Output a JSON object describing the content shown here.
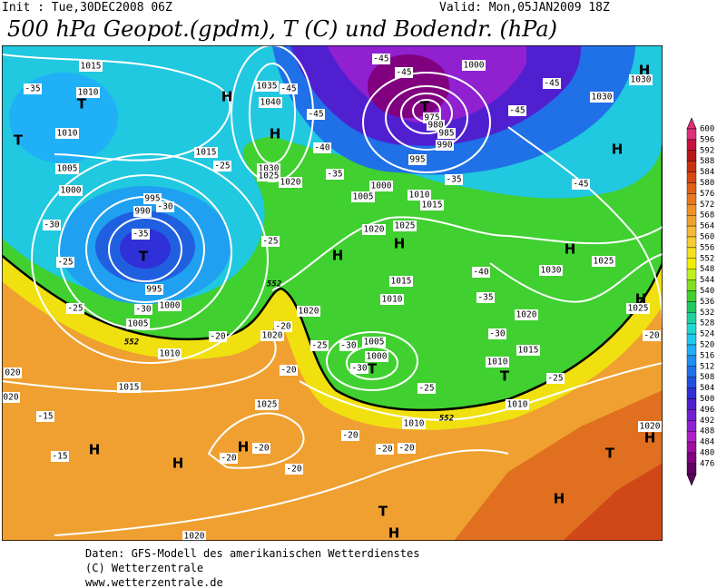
{
  "header": {
    "init": "Init : Tue,30DEC2008 06Z",
    "valid": "Valid: Mon,05JAN2009 18Z",
    "title": "500 hPa Geopot.(gpdm), T (C) und Bodendr. (hPa)"
  },
  "legend": [
    {
      "label": 600,
      "color": "#e0307a"
    },
    {
      "label": 596,
      "color": "#c8103e"
    },
    {
      "label": 592,
      "color": "#b81818"
    },
    {
      "label": 588,
      "color": "#c83010"
    },
    {
      "label": 584,
      "color": "#d84810"
    },
    {
      "label": 580,
      "color": "#e06018"
    },
    {
      "label": 576,
      "color": "#e87820"
    },
    {
      "label": 572,
      "color": "#f09028"
    },
    {
      "label": 568,
      "color": "#f0a030"
    },
    {
      "label": 564,
      "color": "#f8b838"
    },
    {
      "label": 560,
      "color": "#f8cc30"
    },
    {
      "label": 556,
      "color": "#f8e020"
    },
    {
      "label": 552,
      "color": "#f0f000"
    },
    {
      "label": 548,
      "color": "#c0f020"
    },
    {
      "label": 544,
      "color": "#80e020"
    },
    {
      "label": 540,
      "color": "#40d030"
    },
    {
      "label": 536,
      "color": "#20c860"
    },
    {
      "label": 532,
      "color": "#20d0a0"
    },
    {
      "label": 528,
      "color": "#20d8d0"
    },
    {
      "label": 524,
      "color": "#20c8f0"
    },
    {
      "label": 520,
      "color": "#20b0f8"
    },
    {
      "label": 516,
      "color": "#2090f0"
    },
    {
      "label": 512,
      "color": "#2070e8"
    },
    {
      "label": 508,
      "color": "#2050e0"
    },
    {
      "label": 504,
      "color": "#3030d8"
    },
    {
      "label": 500,
      "color": "#5020d0"
    },
    {
      "label": 496,
      "color": "#7020d0"
    },
    {
      "label": 492,
      "color": "#9020d0"
    },
    {
      "label": 488,
      "color": "#b020c8"
    },
    {
      "label": 484,
      "color": "#a010a0"
    },
    {
      "label": 480,
      "color": "#800080"
    },
    {
      "label": 476,
      "color": "#600060"
    }
  ],
  "map_labels": [
    "1015",
    "1010",
    "T",
    "-35",
    "1010",
    "T",
    "1005",
    "1000",
    "995",
    "990",
    "-30",
    "-35",
    "T",
    "-30",
    "-25",
    "995",
    "1000",
    "-30",
    "-25",
    "1005",
    "1010",
    "H",
    "1015",
    "-25",
    "1035",
    "1040",
    "H",
    "1030",
    "1025",
    "1020",
    "-45",
    "-45",
    "-40",
    "-35",
    "-45",
    "-45",
    "T",
    "975",
    "980",
    "985",
    "990",
    "1000",
    "-45",
    "-45",
    "1030",
    "H",
    "-45",
    "995",
    "1000",
    "1005",
    "1010",
    "1015",
    "-35",
    "H",
    "1030",
    "-25",
    "H",
    "1020",
    "1025",
    "H",
    "H",
    "1030",
    "1025",
    "-40",
    "H",
    "1025",
    "1015",
    "1010",
    "-35",
    "1020",
    "1020",
    "-20",
    "1020",
    "-25",
    "1005",
    "-30",
    "1000",
    "-30",
    "T",
    "-25",
    "-30",
    "1015",
    "1010",
    "T",
    "-25",
    "-20",
    "1010",
    "1010",
    "-20",
    "-20",
    "1015",
    "020",
    "020",
    "-15",
    "-15",
    "H",
    "H",
    "1025",
    "H",
    "-20",
    "-20",
    "-20",
    "-20",
    "-20",
    "-20",
    "T",
    "1020",
    "H",
    "H",
    "T",
    "1020",
    "H",
    "552",
    "552",
    "552"
  ],
  "footer": [
    "Daten: GFS-Modell des amerikanischen Wetterdienstes",
    "(C) Wetterzentrale",
    "www.wetterzentrale.de"
  ]
}
